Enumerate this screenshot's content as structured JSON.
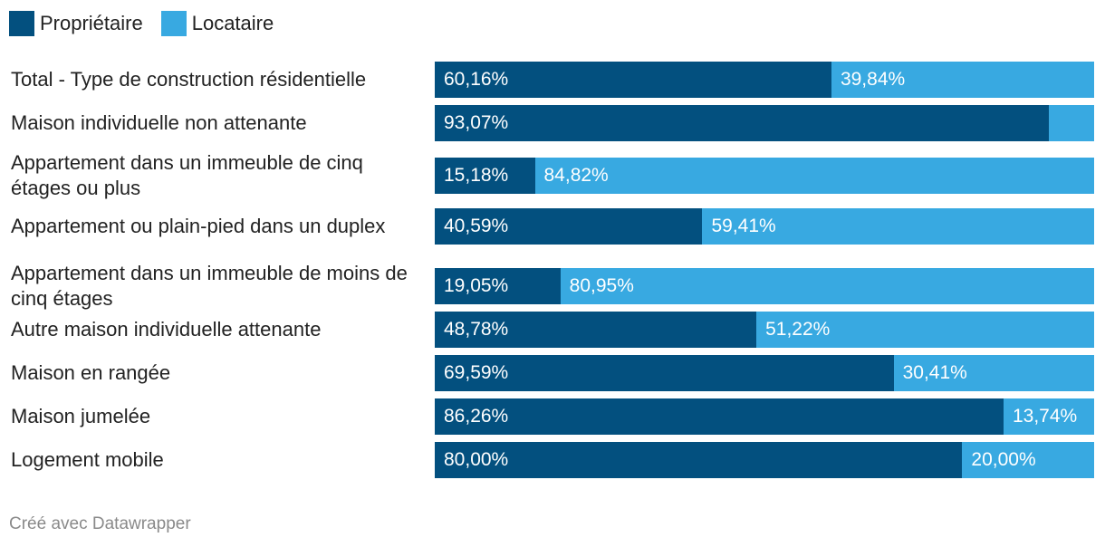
{
  "colors": {
    "owner": "#03507f",
    "renter": "#38a9e1"
  },
  "legend": [
    {
      "label": "Propriétaire",
      "color": "#03507f"
    },
    {
      "label": "Locataire",
      "color": "#38a9e1"
    }
  ],
  "footer": "Créé avec Datawrapper",
  "chart_data": {
    "type": "bar",
    "orientation": "horizontal",
    "stacked": true,
    "title": "",
    "xlabel": "",
    "ylabel": "",
    "xlim": [
      0,
      100
    ],
    "grid": false,
    "legend_position": "top-left",
    "categories": [
      "Total - Type de construction résidentielle",
      "Maison individuelle non attenante",
      "Appartement dans un immeuble de cinq étages ou plus",
      "Appartement ou plain-pied dans un duplex",
      "Appartement dans un immeuble de moins de cinq étages",
      "Autre maison individuelle attenante",
      "Maison en rangée",
      "Maison jumelée",
      "Logement mobile"
    ],
    "series": [
      {
        "name": "Propriétaire",
        "color": "#03507f",
        "values": [
          60.16,
          93.07,
          15.18,
          40.59,
          19.05,
          48.78,
          69.59,
          86.26,
          80.0
        ],
        "labels": [
          "60,16%",
          "93,07%",
          "15,18%",
          "40,59%",
          "19,05%",
          "48,78%",
          "69,59%",
          "86,26%",
          "80,00%"
        ]
      },
      {
        "name": "Locataire",
        "color": "#38a9e1",
        "values": [
          39.84,
          6.93,
          84.82,
          59.41,
          80.95,
          51.22,
          30.41,
          13.74,
          20.0
        ],
        "labels": [
          "39,84%",
          "",
          "84,82%",
          "59,41%",
          "80,95%",
          "51,22%",
          "30,41%",
          "13,74%",
          "20,00%"
        ]
      }
    ]
  }
}
